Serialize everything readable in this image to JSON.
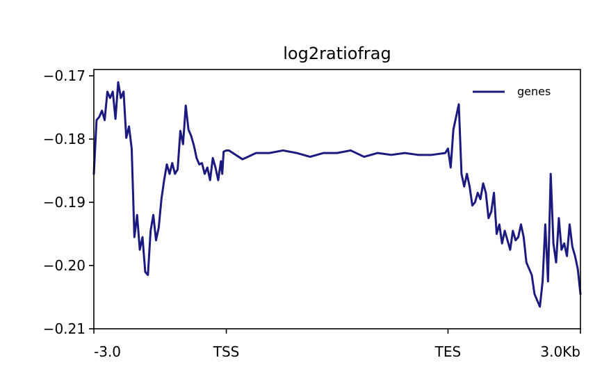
{
  "chart_data": {
    "type": "line",
    "title": "log2ratiofrag",
    "xlabel": "",
    "ylabel": "",
    "x_ticks": [
      "-3.0",
      "TSS",
      "TES",
      "3.0Kb"
    ],
    "y_ticks": [
      "−0.17",
      "−0.18",
      "−0.19",
      "−0.20",
      "−0.21"
    ],
    "ylim": [
      -0.21,
      -0.169
    ],
    "legend_position": "top-right",
    "grid": false,
    "series": [
      {
        "name": "genes",
        "color": "#1a1a80",
        "x": [
          0,
          2,
          4,
          6,
          8,
          10,
          12,
          14,
          16,
          18,
          20,
          22,
          24,
          26,
          28,
          30,
          32,
          34,
          36,
          38,
          40,
          42,
          44,
          46,
          48,
          50,
          52,
          54,
          56,
          58,
          60,
          62,
          64,
          66,
          68,
          70,
          72,
          74,
          76,
          78,
          80,
          82,
          84,
          86,
          88,
          90,
          92,
          94,
          95,
          96,
          98,
          100,
          110,
          120,
          130,
          140,
          150,
          160,
          170,
          180,
          190,
          200,
          210,
          220,
          230,
          240,
          250,
          260,
          262,
          264,
          266,
          268,
          270,
          272,
          274,
          276,
          278,
          280,
          282,
          284,
          286,
          288,
          290,
          292,
          294,
          296,
          298,
          300,
          302,
          304,
          306,
          308,
          310,
          312,
          314,
          316,
          318,
          320,
          322,
          324,
          326,
          328,
          330,
          332,
          334,
          336,
          338,
          340,
          342,
          344,
          346,
          348,
          350,
          352,
          354,
          356,
          358,
          360
        ],
        "y": [
          -0.1855,
          -0.177,
          -0.1765,
          -0.1755,
          -0.177,
          -0.1725,
          -0.1735,
          -0.1725,
          -0.1768,
          -0.171,
          -0.1735,
          -0.1725,
          -0.1798,
          -0.178,
          -0.1815,
          -0.1955,
          -0.192,
          -0.1975,
          -0.1955,
          -0.201,
          -0.2015,
          -0.1945,
          -0.192,
          -0.196,
          -0.194,
          -0.1895,
          -0.1865,
          -0.184,
          -0.1855,
          -0.1838,
          -0.1855,
          -0.1848,
          -0.1787,
          -0.1808,
          -0.1747,
          -0.1785,
          -0.1795,
          -0.181,
          -0.183,
          -0.184,
          -0.1838,
          -0.1855,
          -0.1845,
          -0.1865,
          -0.183,
          -0.1845,
          -0.1865,
          -0.1835,
          -0.1855,
          -0.182,
          -0.1818,
          -0.1818,
          -0.1832,
          -0.1822,
          -0.1822,
          -0.1818,
          -0.1822,
          -0.1828,
          -0.1822,
          -0.1822,
          -0.1818,
          -0.1828,
          -0.1822,
          -0.1825,
          -0.1822,
          -0.1825,
          -0.1825,
          -0.1822,
          -0.1815,
          -0.1845,
          -0.1785,
          -0.1765,
          -0.1745,
          -0.1855,
          -0.1875,
          -0.1855,
          -0.1875,
          -0.1905,
          -0.19,
          -0.1885,
          -0.1895,
          -0.187,
          -0.1885,
          -0.1925,
          -0.1915,
          -0.1885,
          -0.195,
          -0.1935,
          -0.1965,
          -0.1945,
          -0.196,
          -0.1975,
          -0.1945,
          -0.196,
          -0.1955,
          -0.1935,
          -0.1955,
          -0.1995,
          -0.2005,
          -0.2015,
          -0.2045,
          -0.2055,
          -0.2065,
          -0.2025,
          -0.1935,
          -0.2025,
          -0.1855,
          -0.1965,
          -0.1995,
          -0.1925,
          -0.1975,
          -0.1965,
          -0.1985,
          -0.1935,
          -0.197,
          -0.1985,
          -0.2005,
          -0.2045
        ]
      }
    ]
  }
}
